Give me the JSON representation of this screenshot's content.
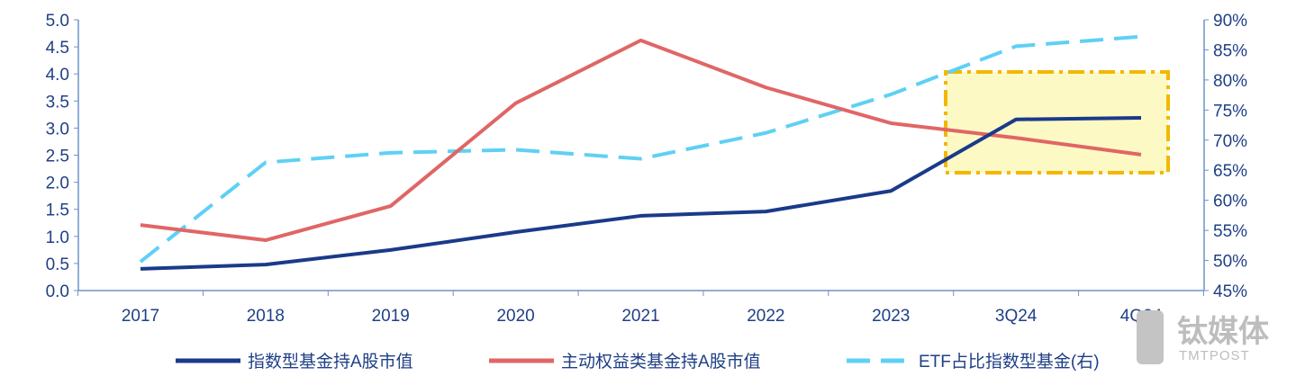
{
  "chart_data": {
    "type": "line",
    "categories": [
      "2017",
      "2018",
      "2019",
      "2020",
      "2021",
      "2022",
      "2023",
      "3Q24",
      "4Q24"
    ],
    "left_axis": {
      "ylim": [
        0,
        5.0
      ],
      "ticks": [
        "0.0",
        "0.5",
        "1.0",
        "1.5",
        "2.0",
        "2.5",
        "3.0",
        "3.5",
        "4.0",
        "4.5",
        "5.0"
      ]
    },
    "right_axis": {
      "ylim": [
        45,
        90
      ],
      "ticks": [
        "45%",
        "50%",
        "55%",
        "60%",
        "65%",
        "70%",
        "75%",
        "80%",
        "85%",
        "90%"
      ]
    },
    "series": [
      {
        "name": "指数型基金持A股市值",
        "axis": "left",
        "color": "#1a3a8a",
        "style": "solid",
        "values": [
          0.4,
          0.48,
          0.75,
          1.08,
          1.38,
          1.46,
          1.84,
          3.16,
          3.19
        ]
      },
      {
        "name": "主动权益类基金持A股市值",
        "axis": "left",
        "color": "#e06666",
        "style": "solid",
        "values": [
          1.21,
          0.93,
          1.56,
          3.46,
          4.62,
          3.75,
          3.09,
          2.82,
          2.51
        ]
      },
      {
        "name": "ETF占比指数型基金(右)",
        "axis": "right",
        "color": "#5fd0f5",
        "style": "dashed",
        "values": [
          49.8,
          66.3,
          67.9,
          68.4,
          66.9,
          71.2,
          77.6,
          85.6,
          87.2
        ]
      }
    ],
    "highlight": {
      "from": "3Q24",
      "to": "4Q24",
      "fill": "#fdf9c4",
      "stroke": "#f2b705"
    },
    "legend_position": "bottom"
  },
  "watermark": {
    "cn": "钛媒体",
    "en": "TMTPOST"
  }
}
